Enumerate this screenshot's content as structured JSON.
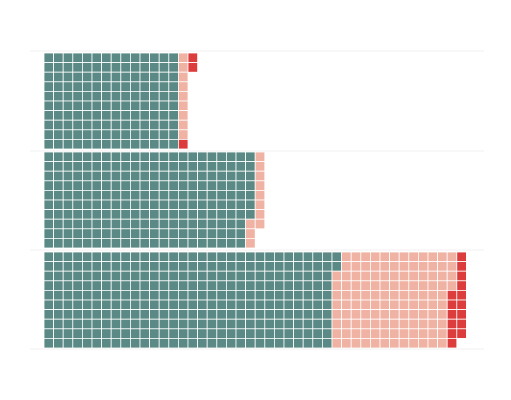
{
  "chart_data": {
    "type": "waffle",
    "orientation": "horizontal",
    "cells_per_column": 10,
    "unit_per_cell": 1,
    "title": "",
    "xlabel": "",
    "ylabel": "",
    "legend": "none",
    "grid": false,
    "series": [
      {
        "color": "#5b8a86"
      },
      {
        "color": "#f0b2a2"
      },
      {
        "color": "#dc3c3c"
      }
    ],
    "rows": [
      {
        "values": [
          140,
          9,
          3
        ]
      },
      {
        "values": [
          217,
          11,
          0
        ]
      },
      {
        "values": [
          302,
          122,
          15
        ]
      }
    ]
  }
}
